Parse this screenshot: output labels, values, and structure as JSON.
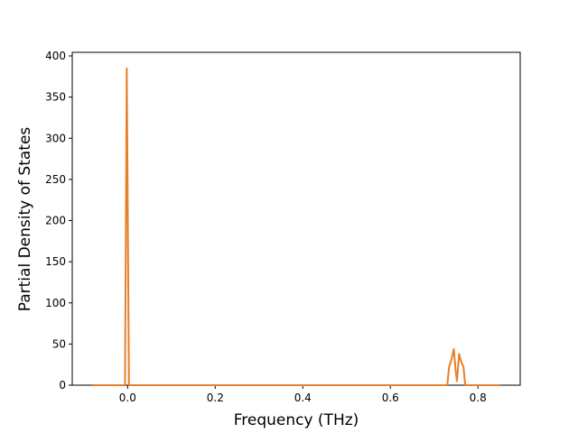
{
  "chart_data": {
    "type": "line",
    "x_label": "Frequency (THz)",
    "y_label": "Partial Density of States",
    "series": [
      {
        "color": "#e8802a",
        "x": [
          -0.08,
          -0.006,
          -0.002,
          0.003,
          0.73,
          0.734,
          0.739,
          0.745,
          0.749,
          0.752,
          0.757,
          0.762,
          0.767,
          0.771,
          0.85
        ],
        "values": [
          0,
          0,
          385,
          0,
          0,
          22,
          30,
          44,
          18,
          5,
          38,
          28,
          22,
          0,
          0
        ]
      }
    ],
    "xlim": [
      -0.1265,
      0.8965
    ],
    "ylim": [
      0,
      404.4
    ],
    "xticks": [
      {
        "value": 0,
        "label": "0.0"
      },
      0.2,
      0.4,
      0.6,
      0.8
    ],
    "yticks": [
      0,
      50,
      100,
      150,
      200,
      250,
      300,
      350,
      400
    ]
  }
}
